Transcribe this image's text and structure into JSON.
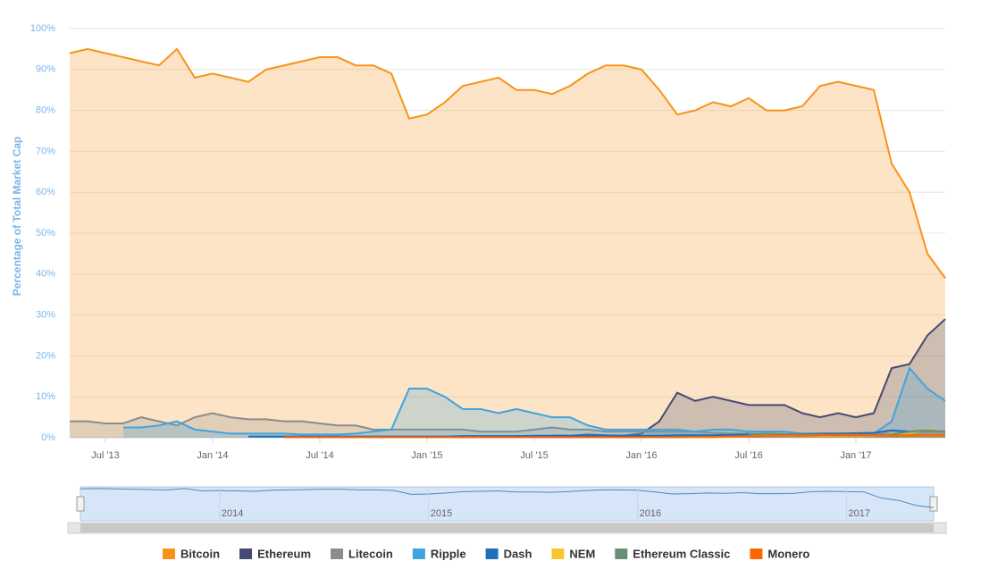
{
  "chart_data": {
    "type": "area",
    "y_label": "Percentage of Total Market Cap",
    "x": [
      "2013-05",
      "2013-06",
      "2013-07",
      "2013-08",
      "2013-09",
      "2013-10",
      "2013-11",
      "2013-12",
      "2014-01",
      "2014-02",
      "2014-03",
      "2014-04",
      "2014-05",
      "2014-06",
      "2014-07",
      "2014-08",
      "2014-09",
      "2014-10",
      "2014-11",
      "2014-12",
      "2015-01",
      "2015-02",
      "2015-03",
      "2015-04",
      "2015-05",
      "2015-06",
      "2015-07",
      "2015-08",
      "2015-09",
      "2015-10",
      "2015-11",
      "2015-12",
      "2016-01",
      "2016-02",
      "2016-03",
      "2016-04",
      "2016-05",
      "2016-06",
      "2016-07",
      "2016-08",
      "2016-09",
      "2016-10",
      "2016-11",
      "2016-12",
      "2017-01",
      "2017-02",
      "2017-03",
      "2017-04",
      "2017-05",
      "2017-06"
    ],
    "xlim": [
      "2013-05",
      "2017-06"
    ],
    "xticks": [
      {
        "value": "2013-07",
        "label": "Jul '13"
      },
      {
        "value": "2014-01",
        "label": "Jan '14"
      },
      {
        "value": "2014-07",
        "label": "Jul '14"
      },
      {
        "value": "2015-01",
        "label": "Jan '15"
      },
      {
        "value": "2015-07",
        "label": "Jul '15"
      },
      {
        "value": "2016-01",
        "label": "Jan '16"
      },
      {
        "value": "2016-07",
        "label": "Jul '16"
      },
      {
        "value": "2017-01",
        "label": "Jan '17"
      }
    ],
    "navigator_ticks": [
      {
        "value": "2014-01",
        "label": "2014"
      },
      {
        "value": "2015-01",
        "label": "2015"
      },
      {
        "value": "2016-01",
        "label": "2016"
      },
      {
        "value": "2017-01",
        "label": "2017"
      }
    ],
    "ylim": [
      0,
      100
    ],
    "yticks": [
      {
        "value": 0,
        "label": "0%"
      },
      {
        "value": 10,
        "label": "10%"
      },
      {
        "value": 20,
        "label": "20%"
      },
      {
        "value": 30,
        "label": "30%"
      },
      {
        "value": 40,
        "label": "40%"
      },
      {
        "value": 50,
        "label": "50%"
      },
      {
        "value": 60,
        "label": "60%"
      },
      {
        "value": 70,
        "label": "70%"
      },
      {
        "value": 80,
        "label": "80%"
      },
      {
        "value": 90,
        "label": "90%"
      },
      {
        "value": 100,
        "label": "100%"
      }
    ],
    "grid": true,
    "series": [
      {
        "name": "Bitcoin",
        "color": "#f7931a",
        "values": [
          94,
          95,
          94,
          93,
          92,
          91,
          95,
          88,
          89,
          88,
          87,
          90,
          91,
          92,
          93,
          93,
          91,
          91,
          89,
          78,
          79,
          82,
          86,
          87,
          88,
          85,
          85,
          84,
          86,
          89,
          91,
          91,
          90,
          85,
          79,
          80,
          82,
          81,
          83,
          80,
          80,
          81,
          86,
          87,
          86,
          85,
          67,
          60,
          45,
          39
        ]
      },
      {
        "name": "Ethereum",
        "color": "#454a75",
        "values": [
          null,
          null,
          null,
          null,
          null,
          null,
          null,
          null,
          null,
          null,
          null,
          null,
          null,
          null,
          null,
          null,
          null,
          null,
          null,
          null,
          null,
          null,
          null,
          null,
          null,
          null,
          null,
          0.5,
          0.5,
          0.8,
          0.6,
          0.5,
          1,
          4,
          11,
          9,
          10,
          9,
          8,
          8,
          8,
          6,
          5,
          6,
          5,
          6,
          17,
          18,
          25,
          29
        ]
      },
      {
        "name": "Litecoin",
        "color": "#8c8c8c",
        "values": [
          4,
          4,
          3.5,
          3.5,
          5,
          4,
          3,
          5,
          6,
          5,
          4.5,
          4.5,
          4,
          4,
          3.5,
          3,
          3,
          2,
          2,
          2,
          2,
          2,
          2,
          1.5,
          1.5,
          1.5,
          2,
          2.5,
          2,
          2,
          1.5,
          1.5,
          1.5,
          1.5,
          1.5,
          1.5,
          1.2,
          1,
          1,
          0.8,
          0.8,
          0.8,
          0.8,
          0.8,
          0.8,
          0.8,
          1,
          1,
          1.5,
          1.5
        ]
      },
      {
        "name": "Ripple",
        "color": "#3fa4e0",
        "values": [
          null,
          null,
          null,
          2.5,
          2.5,
          3,
          4,
          2,
          1.5,
          1,
          1,
          1,
          1,
          0.8,
          0.8,
          0.8,
          1,
          1.5,
          2,
          12,
          12,
          10,
          7,
          7,
          6,
          7,
          6,
          5,
          5,
          3,
          2,
          2,
          2,
          2,
          2,
          1.5,
          2,
          2,
          1.5,
          1.5,
          1.5,
          1,
          1,
          1,
          1,
          1,
          4,
          17,
          12,
          9
        ]
      },
      {
        "name": "Dash",
        "color": "#1e6fb8",
        "values": [
          null,
          null,
          null,
          null,
          null,
          null,
          null,
          null,
          null,
          null,
          0.3,
          0.3,
          0.3,
          0.3,
          0.3,
          0.3,
          0.3,
          0.3,
          0.3,
          0.3,
          0.3,
          0.3,
          0.4,
          0.4,
          0.4,
          0.4,
          0.5,
          0.5,
          0.5,
          0.5,
          0.5,
          0.5,
          0.5,
          0.5,
          0.6,
          0.6,
          0.6,
          0.7,
          0.8,
          0.8,
          0.8,
          0.9,
          1,
          1,
          1.1,
          1.2,
          1.8,
          1.5,
          1.8,
          1.5
        ]
      },
      {
        "name": "NEM",
        "color": "#f7c530",
        "values": [
          null,
          null,
          null,
          null,
          null,
          null,
          null,
          null,
          null,
          null,
          null,
          null,
          null,
          null,
          null,
          null,
          null,
          null,
          null,
          null,
          null,
          null,
          null,
          0.1,
          0.1,
          0.1,
          0.1,
          0.1,
          0.1,
          0.1,
          0.1,
          0.1,
          0.1,
          0.1,
          0.1,
          0.1,
          0.1,
          0.2,
          0.3,
          0.6,
          0.5,
          0.4,
          0.3,
          0.3,
          0.3,
          0.4,
          1,
          1,
          2,
          1.5
        ]
      },
      {
        "name": "Ethereum Classic",
        "color": "#669073",
        "values": [
          null,
          null,
          null,
          null,
          null,
          null,
          null,
          null,
          null,
          null,
          null,
          null,
          null,
          null,
          null,
          null,
          null,
          null,
          null,
          null,
          null,
          null,
          null,
          null,
          null,
          null,
          null,
          null,
          null,
          null,
          null,
          null,
          null,
          null,
          null,
          null,
          null,
          null,
          0.8,
          1,
          0.9,
          0.8,
          0.8,
          0.6,
          0.6,
          0.6,
          0.8,
          1.5,
          1.8,
          1.5
        ]
      },
      {
        "name": "Monero",
        "color": "#ff6600",
        "values": [
          null,
          null,
          null,
          null,
          null,
          null,
          null,
          null,
          null,
          null,
          null,
          null,
          0.1,
          0.1,
          0.1,
          0.1,
          0.1,
          0.1,
          0.1,
          0.1,
          0.1,
          0.1,
          0.1,
          0.1,
          0.1,
          0.1,
          0.1,
          0.1,
          0.1,
          0.1,
          0.1,
          0.1,
          0.1,
          0.1,
          0.1,
          0.2,
          0.2,
          0.3,
          0.3,
          0.5,
          0.6,
          0.5,
          0.6,
          0.7,
          0.7,
          0.6,
          0.5,
          0.6,
          0.6,
          0.6
        ]
      }
    ]
  }
}
